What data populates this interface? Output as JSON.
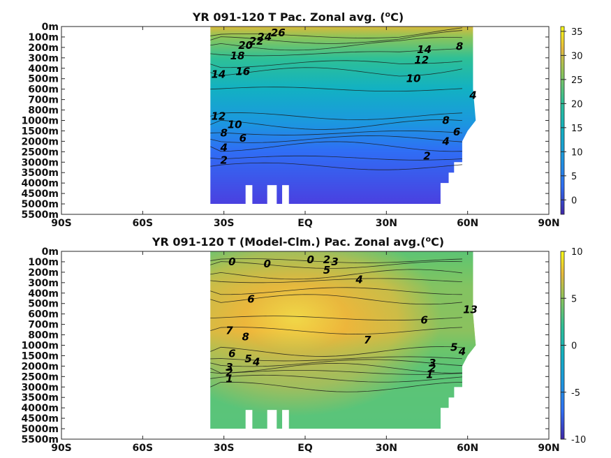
{
  "chart_data": [
    {
      "type": "heatmap",
      "title": "YR 091-120 T Pac. Zonal avg. (",
      "title_sup": "o",
      "title_end": "C)",
      "x_ticks": [
        "90S",
        "60S",
        "30S",
        "EQ",
        "30N",
        "60N",
        "90N"
      ],
      "x_values": [
        -90,
        -60,
        -30,
        0,
        30,
        60,
        90
      ],
      "y_ticks": [
        "0m",
        "100m",
        "200m",
        "300m",
        "400m",
        "500m",
        "600m",
        "700m",
        "800m",
        "1000m",
        "1500m",
        "2000m",
        "2500m",
        "3000m",
        "3500m",
        "4000m",
        "4500m",
        "5000m",
        "5500m"
      ],
      "colorbar": {
        "ticks": [
          "35",
          "30",
          "25",
          "20",
          "15",
          "10",
          "5",
          "0"
        ],
        "values": [
          35,
          30,
          25,
          20,
          15,
          10,
          5,
          0
        ],
        "range": [
          -3,
          36
        ]
      },
      "contour_labels": [
        {
          "text": "26",
          "lat": -10,
          "depth": 0.6
        },
        {
          "text": "24",
          "lat": -15,
          "depth": 1.0
        },
        {
          "text": "22",
          "lat": -18,
          "depth": 1.4
        },
        {
          "text": "20",
          "lat": -22,
          "depth": 1.8
        },
        {
          "text": "18",
          "lat": -25,
          "depth": 2.8
        },
        {
          "text": "16",
          "lat": -23,
          "depth": 4.3
        },
        {
          "text": "14",
          "lat": -32,
          "depth": 4.6
        },
        {
          "text": "14",
          "lat": 44,
          "depth": 2.2
        },
        {
          "text": "12",
          "lat": 43,
          "depth": 3.2
        },
        {
          "text": "10",
          "lat": 40,
          "depth": 5.0
        },
        {
          "text": "8",
          "lat": 57,
          "depth": 1.9
        },
        {
          "text": "4",
          "lat": 62,
          "depth": 6.6
        },
        {
          "text": "12",
          "lat": -32,
          "depth": 8.6
        },
        {
          "text": "10",
          "lat": -26,
          "depth": 9.4
        },
        {
          "text": "8",
          "lat": -30,
          "depth": 10.2
        },
        {
          "text": "6",
          "lat": -23,
          "depth": 10.7
        },
        {
          "text": "8",
          "lat": 52,
          "depth": 9.0
        },
        {
          "text": "6",
          "lat": 56,
          "depth": 10.1
        },
        {
          "text": "4",
          "lat": 52,
          "depth": 11.0
        },
        {
          "text": "4",
          "lat": -30,
          "depth": 11.6
        },
        {
          "text": "2",
          "lat": -30,
          "depth": 12.8
        },
        {
          "text": "2",
          "lat": 45,
          "depth": 12.4
        }
      ]
    },
    {
      "type": "heatmap",
      "title": "YR 091-120 T (Model-Clm.) Pac. Zonal avg.(",
      "title_sup": "o",
      "title_end": "C)",
      "x_ticks": [
        "90S",
        "60S",
        "30S",
        "EQ",
        "30N",
        "60N",
        "90N"
      ],
      "x_values": [
        -90,
        -60,
        -30,
        0,
        30,
        60,
        90
      ],
      "y_ticks": [
        "0m",
        "100m",
        "200m",
        "300m",
        "400m",
        "500m",
        "600m",
        "700m",
        "800m",
        "1000m",
        "1500m",
        "2000m",
        "2500m",
        "3000m",
        "3500m",
        "4000m",
        "4500m",
        "5000m",
        "5500m"
      ],
      "colorbar": {
        "ticks": [
          "10",
          "5",
          "0",
          "-5",
          "-10"
        ],
        "values": [
          10,
          5,
          0,
          -5,
          -10
        ],
        "range": [
          -10,
          10
        ]
      },
      "contour_labels": [
        {
          "text": "0",
          "lat": -27,
          "depth": 1.0
        },
        {
          "text": "0",
          "lat": -14,
          "depth": 1.2
        },
        {
          "text": "0",
          "lat": 2,
          "depth": 0.8
        },
        {
          "text": "2",
          "lat": 8,
          "depth": 0.8
        },
        {
          "text": "3",
          "lat": 11,
          "depth": 1.0
        },
        {
          "text": "5",
          "lat": 8,
          "depth": 1.8
        },
        {
          "text": "4",
          "lat": 20,
          "depth": 2.7
        },
        {
          "text": "6",
          "lat": -20,
          "depth": 4.6
        },
        {
          "text": "6",
          "lat": 44,
          "depth": 6.6
        },
        {
          "text": "7",
          "lat": -28,
          "depth": 7.6
        },
        {
          "text": "8",
          "lat": -22,
          "depth": 8.2
        },
        {
          "text": "7",
          "lat": 23,
          "depth": 8.5
        },
        {
          "text": "13",
          "lat": 61,
          "depth": 5.6
        },
        {
          "text": "5",
          "lat": 55,
          "depth": 9.2
        },
        {
          "text": "4",
          "lat": 58,
          "depth": 9.6
        },
        {
          "text": "6",
          "lat": -27,
          "depth": 9.8
        },
        {
          "text": "5",
          "lat": -21,
          "depth": 10.3
        },
        {
          "text": "4",
          "lat": -18,
          "depth": 10.6
        },
        {
          "text": "3",
          "lat": -28,
          "depth": 11.1
        },
        {
          "text": "2",
          "lat": -28,
          "depth": 11.6
        },
        {
          "text": "1",
          "lat": -28,
          "depth": 12.2
        },
        {
          "text": "3",
          "lat": 47,
          "depth": 10.7
        },
        {
          "text": "2",
          "lat": 47,
          "depth": 11.2
        },
        {
          "text": "1",
          "lat": 46,
          "depth": 11.8
        }
      ]
    }
  ]
}
